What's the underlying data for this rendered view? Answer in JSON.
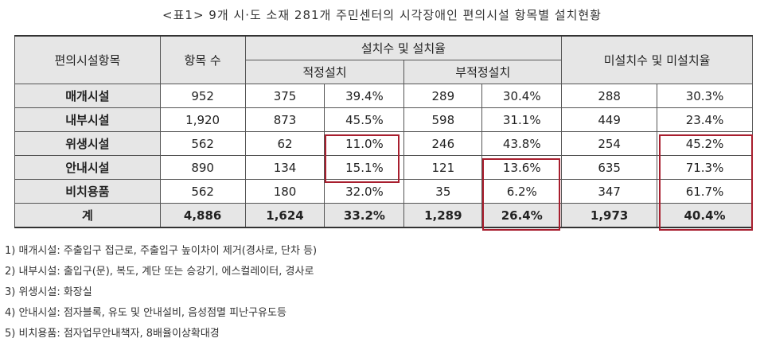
{
  "caption": "<표1> 9개 시·도 소재 281개 주민센터의 시각장애인 편의시설 항목별 설치현황",
  "headers": {
    "category": "편의시설항목",
    "count": "항목 수",
    "installed": "설치수 및 설치율",
    "proper": "적정설치",
    "improper": "부적정설치",
    "not_installed": "미설치수 및 미설치율"
  },
  "rows": [
    {
      "name": "매개시설",
      "count": "952",
      "proper_n": "375",
      "proper_pct": "39.4%",
      "improper_n": "289",
      "improper_pct": "30.4%",
      "none_n": "288",
      "none_pct": "30.3%"
    },
    {
      "name": "내부시설",
      "count": "1,920",
      "proper_n": "873",
      "proper_pct": "45.5%",
      "improper_n": "598",
      "improper_pct": "31.1%",
      "none_n": "449",
      "none_pct": "23.4%"
    },
    {
      "name": "위생시설",
      "count": "562",
      "proper_n": "62",
      "proper_pct": "11.0%",
      "improper_n": "246",
      "improper_pct": "43.8%",
      "none_n": "254",
      "none_pct": "45.2%"
    },
    {
      "name": "안내시설",
      "count": "890",
      "proper_n": "134",
      "proper_pct": "15.1%",
      "improper_n": "121",
      "improper_pct": "13.6%",
      "none_n": "635",
      "none_pct": "71.3%"
    },
    {
      "name": "비치용품",
      "count": "562",
      "proper_n": "180",
      "proper_pct": "32.0%",
      "improper_n": "35",
      "improper_pct": "6.2%",
      "none_n": "347",
      "none_pct": "61.7%"
    }
  ],
  "total": {
    "name": "계",
    "count": "4,886",
    "proper_n": "1,624",
    "proper_pct": "33.2%",
    "improper_n": "1,289",
    "improper_pct": "26.4%",
    "none_n": "1,973",
    "none_pct": "40.4%"
  },
  "notes": [
    "1) 매개시설: 주출입구 접근로, 주출입구 높이차이 제거(경사로, 단차 등)",
    "2) 내부시설: 출입구(문), 복도, 계단 또는 승강기, 에스컬레이터, 경사로",
    "3) 위생시설: 화장실",
    "4) 안내시설: 점자블록, 유도 및 안내설비, 음성점멸 피난구유도등",
    "5) 비치용품: 점자업무안내책자, 8배율이상확대경"
  ],
  "highlight_color": "#a81e2e"
}
